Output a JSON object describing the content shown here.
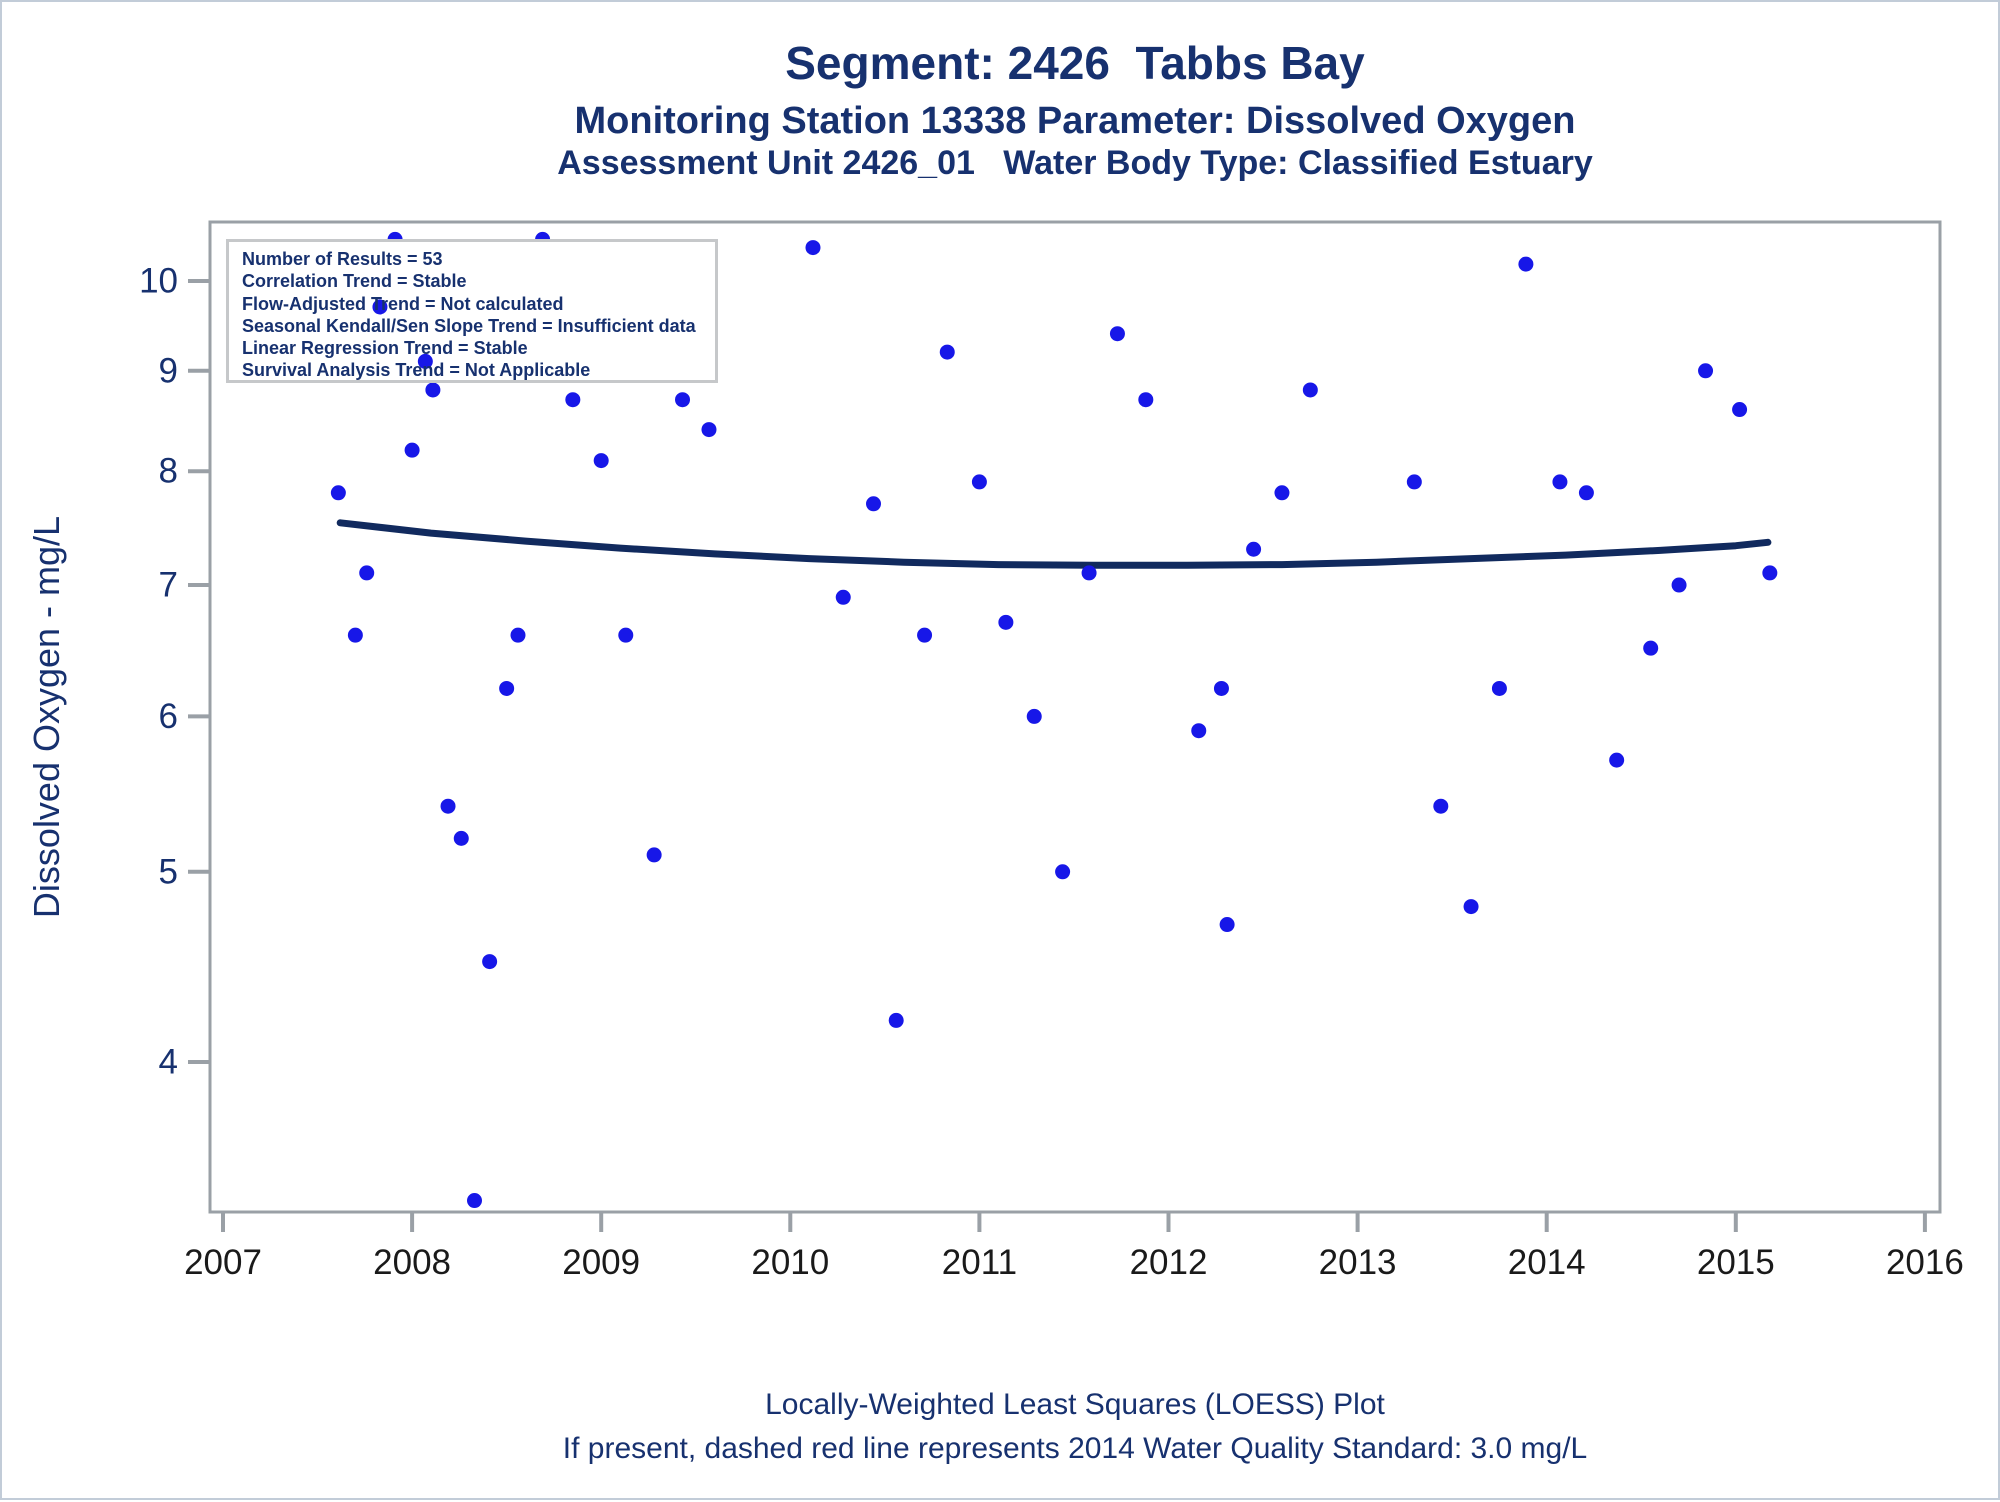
{
  "header": {
    "title1": "Segment: 2426  Tabbs Bay",
    "title2": "Monitoring Station 13338 Parameter: Dissolved Oxygen",
    "title3": "Assessment Unit 2426_01   Water Body Type: Classified Estuary"
  },
  "stats_box": {
    "lines": [
      "Number of Results = 53",
      "Correlation Trend = Stable",
      "Flow-Adjusted Trend = Not calculated",
      "Seasonal Kendall/Sen Slope Trend = Insufficient data",
      "Linear Regression Trend = Stable",
      "Survival Analysis Trend = Not Applicable"
    ]
  },
  "footer": {
    "line1": "Locally-Weighted Least Squares (LOESS) Plot",
    "line2": "If present, dashed red line represents 2014 Water Quality Standard: 3.0 mg/L"
  },
  "colors": {
    "navy_text": "#17316f",
    "dot_blue": "#1717e8",
    "loess_navy": "#112a5e",
    "axis_gray": "#9aa0a6",
    "x_tick_label": "#1a1a1a",
    "box_border": "#c6c8ca",
    "page_border": "#c2ccd8"
  },
  "chart_data": {
    "type": "scatter",
    "title": "Segment: 2426 Tabbs Bay — Monitoring Station 13338 — Dissolved Oxygen",
    "xlabel": "",
    "ylabel": "Dissolved Oxygen - mg/L",
    "y_scale": "log10",
    "xlim": [
      2007,
      2016
    ],
    "ylim": [
      3.35,
      10.7
    ],
    "x_ticks": [
      2007,
      2008,
      2009,
      2010,
      2011,
      2012,
      2013,
      2014,
      2015,
      2016
    ],
    "y_ticks": [
      10,
      9,
      8,
      7,
      6,
      5,
      4
    ],
    "grid": false,
    "legend_position": "none",
    "points": [
      [
        2007.61,
        7.8
      ],
      [
        2007.7,
        6.6
      ],
      [
        2007.76,
        7.1
      ],
      [
        2007.83,
        9.7
      ],
      [
        2007.91,
        10.5
      ],
      [
        2008.0,
        8.2
      ],
      [
        2008.07,
        9.1
      ],
      [
        2008.11,
        8.8
      ],
      [
        2008.19,
        5.4
      ],
      [
        2008.26,
        5.2
      ],
      [
        2008.33,
        3.4
      ],
      [
        2008.41,
        4.5
      ],
      [
        2008.5,
        6.2
      ],
      [
        2008.56,
        6.6
      ],
      [
        2008.69,
        10.5
      ],
      [
        2008.85,
        8.7
      ],
      [
        2009.0,
        8.1
      ],
      [
        2009.13,
        6.6
      ],
      [
        2009.28,
        5.1
      ],
      [
        2009.43,
        8.7
      ],
      [
        2009.57,
        8.4
      ],
      [
        2010.12,
        10.4
      ],
      [
        2010.28,
        6.9
      ],
      [
        2010.44,
        7.7
      ],
      [
        2010.56,
        4.2
      ],
      [
        2010.71,
        6.6
      ],
      [
        2010.83,
        9.2
      ],
      [
        2011.0,
        7.9
      ],
      [
        2011.14,
        6.7
      ],
      [
        2011.29,
        6.0
      ],
      [
        2011.44,
        5.0
      ],
      [
        2011.58,
        7.1
      ],
      [
        2011.73,
        9.4
      ],
      [
        2011.88,
        8.7
      ],
      [
        2012.16,
        5.9
      ],
      [
        2012.28,
        6.2
      ],
      [
        2012.31,
        4.7
      ],
      [
        2012.45,
        7.3
      ],
      [
        2012.6,
        7.8
      ],
      [
        2012.75,
        8.8
      ],
      [
        2013.3,
        7.9
      ],
      [
        2013.44,
        5.4
      ],
      [
        2013.6,
        4.8
      ],
      [
        2013.75,
        6.2
      ],
      [
        2013.89,
        10.2
      ],
      [
        2014.07,
        7.9
      ],
      [
        2014.21,
        7.8
      ],
      [
        2014.37,
        5.7
      ],
      [
        2014.55,
        6.5
      ],
      [
        2014.7,
        7.0
      ],
      [
        2014.84,
        9.0
      ],
      [
        2015.02,
        8.6
      ],
      [
        2015.18,
        7.1
      ]
    ],
    "loess": [
      [
        2007.62,
        7.53
      ],
      [
        2008.1,
        7.44
      ],
      [
        2008.6,
        7.37
      ],
      [
        2009.1,
        7.31
      ],
      [
        2009.6,
        7.26
      ],
      [
        2010.1,
        7.22
      ],
      [
        2010.6,
        7.19
      ],
      [
        2011.1,
        7.17
      ],
      [
        2011.6,
        7.165
      ],
      [
        2012.1,
        7.165
      ],
      [
        2012.6,
        7.17
      ],
      [
        2013.1,
        7.19
      ],
      [
        2013.6,
        7.22
      ],
      [
        2014.1,
        7.25
      ],
      [
        2014.6,
        7.29
      ],
      [
        2015.0,
        7.33
      ],
      [
        2015.17,
        7.36
      ]
    ]
  }
}
